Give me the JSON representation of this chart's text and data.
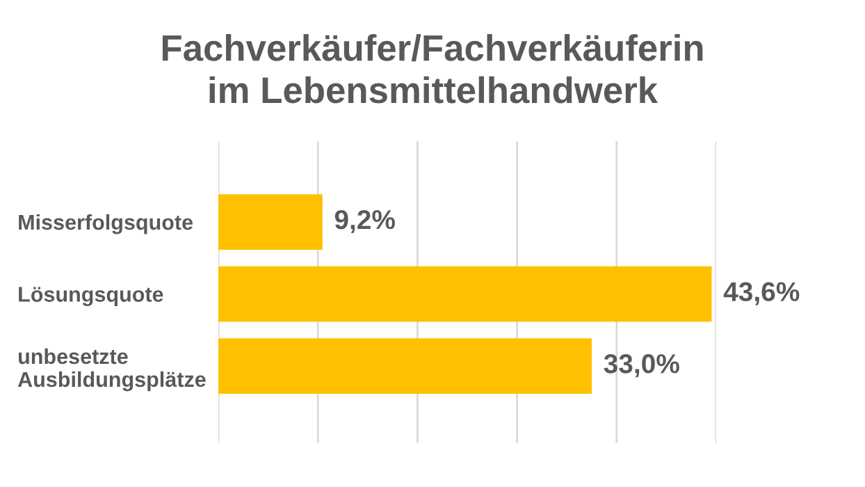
{
  "chart_data": {
    "type": "bar",
    "orientation": "horizontal",
    "title": "Fachverkäufer/Fachverkäuferin\nim Lebensmittelhandwerk",
    "categories": [
      "Misserfolgsquote",
      "Lösungsquote",
      "unbesetzte\nAusbildungsplätze"
    ],
    "values": [
      9.2,
      43.6,
      33.0
    ],
    "value_labels": [
      "9,2%",
      "43,6%",
      "33,0%"
    ],
    "color": "#ffc000",
    "xlim": [
      0,
      44
    ],
    "xticks": [
      {
        "value": 0,
        "label": null
      },
      {
        "value": 8.8,
        "label": null
      },
      {
        "value": 17.6,
        "label": null
      },
      {
        "value": 26.4,
        "label": null
      },
      {
        "value": 35.2,
        "label": null
      },
      {
        "value": 44,
        "label": null
      }
    ],
    "grid": "x",
    "tick_labels": "y"
  }
}
